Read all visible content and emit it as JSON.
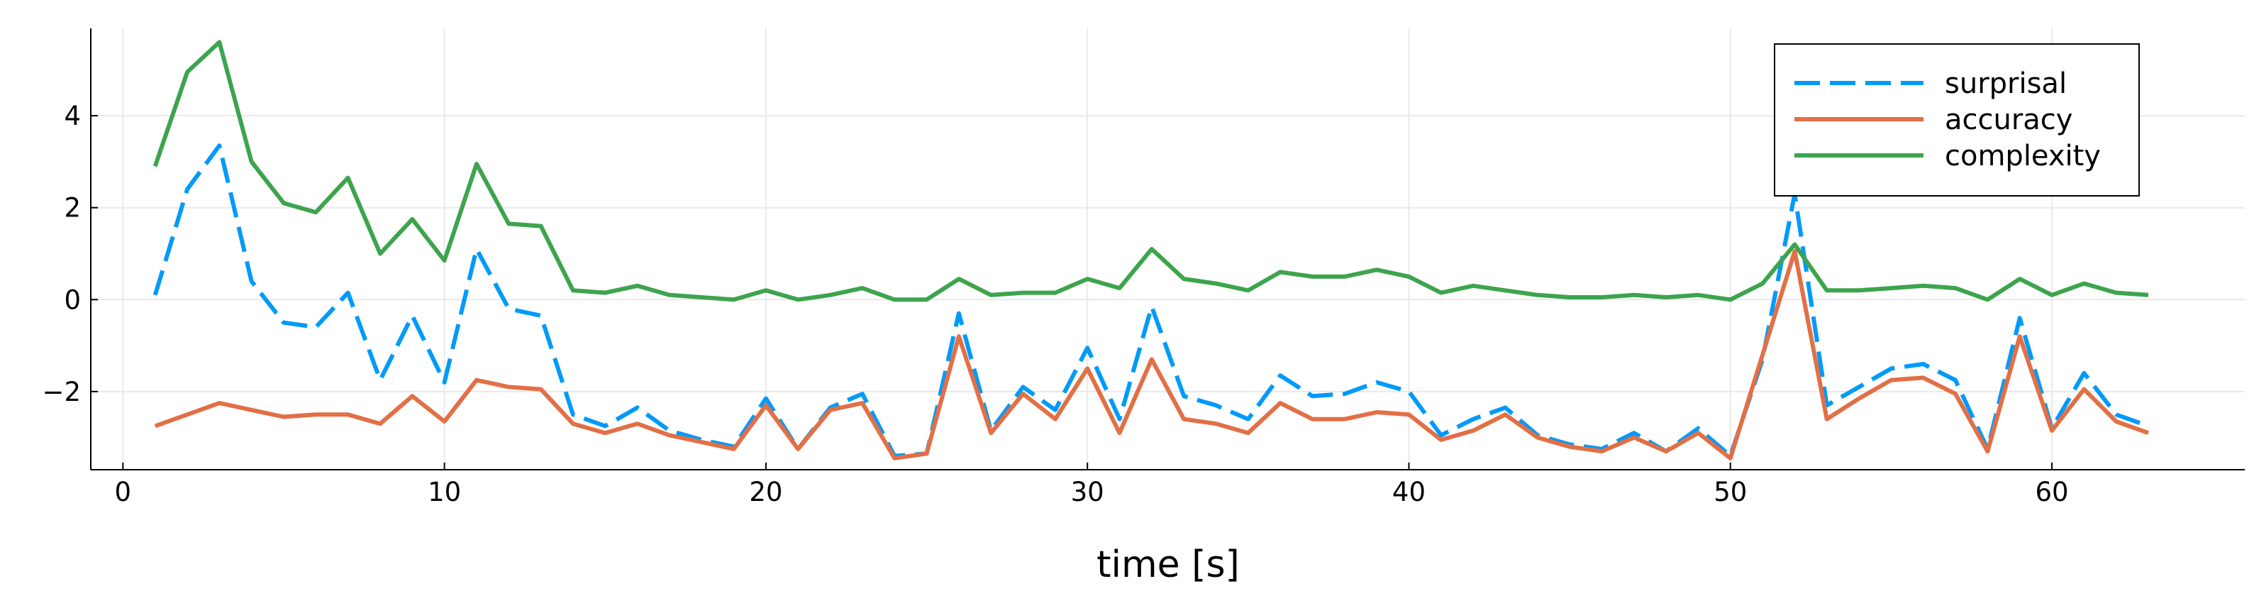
{
  "chart_data": {
    "type": "line",
    "title": "",
    "xlabel": "time [s]",
    "ylabel": "",
    "xlim": [
      -1,
      66
    ],
    "ylim": [
      -3.7,
      5.9
    ],
    "xticks": [
      0,
      10,
      20,
      30,
      40,
      50,
      60
    ],
    "yticks": [
      -2,
      0,
      2,
      4
    ],
    "xtick_labels": [
      "0",
      "10",
      "20",
      "30",
      "40",
      "50",
      "60"
    ],
    "ytick_labels": [
      "−2",
      "0",
      "2",
      "4"
    ],
    "grid": true,
    "legend_position": "top-right",
    "x": [
      1,
      2,
      3,
      4,
      5,
      6,
      7,
      8,
      9,
      10,
      11,
      12,
      13,
      14,
      15,
      16,
      17,
      18,
      19,
      20,
      21,
      22,
      23,
      24,
      25,
      26,
      27,
      28,
      29,
      30,
      31,
      32,
      33,
      34,
      35,
      36,
      37,
      38,
      39,
      40,
      41,
      42,
      43,
      44,
      45,
      46,
      47,
      48,
      49,
      50,
      51,
      52,
      53,
      54,
      55,
      56,
      57,
      58,
      59,
      60,
      61,
      62,
      63
    ],
    "series": [
      {
        "name": "surprisal",
        "color": "#009af9",
        "dash": "dashed",
        "values": [
          0.1,
          2.4,
          3.35,
          0.4,
          -0.5,
          -0.6,
          0.15,
          -1.75,
          -0.35,
          -1.8,
          1.1,
          -0.2,
          -0.35,
          -2.5,
          -2.75,
          -2.35,
          -2.85,
          -3.05,
          -3.2,
          -2.15,
          -3.25,
          -2.35,
          -2.05,
          -3.4,
          -3.35,
          -0.3,
          -2.85,
          -1.9,
          -2.4,
          -1.05,
          -2.6,
          -0.15,
          -2.1,
          -2.3,
          -2.6,
          -1.65,
          -2.1,
          -2.05,
          -1.8,
          -2.0,
          -2.95,
          -2.6,
          -2.35,
          -2.95,
          -3.15,
          -3.25,
          -2.9,
          -3.3,
          -2.8,
          -3.4,
          -1.3,
          2.3,
          -2.3,
          -1.9,
          -1.5,
          -1.4,
          -1.75,
          -3.25,
          -0.4,
          -2.8,
          -1.6,
          -2.5,
          -2.75
        ]
      },
      {
        "name": "accuracy",
        "color": "#e26f46",
        "dash": "solid",
        "values": [
          -2.75,
          -2.5,
          -2.25,
          -2.4,
          -2.55,
          -2.5,
          -2.5,
          -2.7,
          -2.1,
          -2.65,
          -1.75,
          -1.9,
          -1.95,
          -2.7,
          -2.9,
          -2.7,
          -2.95,
          -3.1,
          -3.25,
          -2.3,
          -3.25,
          -2.4,
          -2.25,
          -3.45,
          -3.35,
          -0.8,
          -2.9,
          -2.05,
          -2.6,
          -1.5,
          -2.9,
          -1.3,
          -2.6,
          -2.7,
          -2.9,
          -2.25,
          -2.6,
          -2.6,
          -2.45,
          -2.5,
          -3.05,
          -2.85,
          -2.5,
          -3.0,
          -3.2,
          -3.3,
          -3.0,
          -3.3,
          -2.9,
          -3.45,
          -1.2,
          1.05,
          -2.6,
          -2.15,
          -1.75,
          -1.7,
          -2.05,
          -3.3,
          -0.8,
          -2.85,
          -1.95,
          -2.65,
          -2.9
        ]
      },
      {
        "name": "complexity",
        "color": "#3da44d",
        "dash": "solid",
        "values": [
          2.9,
          4.95,
          5.6,
          3.0,
          2.1,
          1.9,
          2.65,
          1.0,
          1.75,
          0.85,
          2.95,
          1.65,
          1.6,
          0.2,
          0.15,
          0.3,
          0.1,
          0.05,
          0.0,
          0.2,
          0.0,
          0.1,
          0.25,
          0.0,
          0.0,
          0.45,
          0.1,
          0.15,
          0.15,
          0.45,
          0.25,
          1.1,
          0.45,
          0.35,
          0.2,
          0.6,
          0.5,
          0.5,
          0.65,
          0.5,
          0.15,
          0.3,
          0.2,
          0.1,
          0.05,
          0.05,
          0.1,
          0.05,
          0.1,
          0.0,
          0.35,
          1.2,
          0.2,
          0.2,
          0.25,
          0.3,
          0.25,
          0.0,
          0.45,
          0.1,
          0.35,
          0.15,
          0.1
        ]
      }
    ]
  }
}
